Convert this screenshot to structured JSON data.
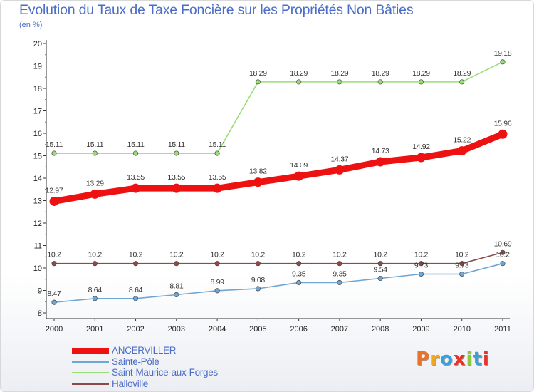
{
  "header": {
    "title": "Evolution du Taux de Taxe Foncière sur les Propriétés Non Bâties",
    "unit": "(en %)"
  },
  "logo": {
    "text": "Proxiti",
    "colors": [
      "#e8732a",
      "#f0a81c",
      "#3aa0da",
      "#e6332a",
      "#8dc63f",
      "#3aa0da",
      "#e6332a"
    ]
  },
  "chart_data": {
    "type": "line",
    "x": [
      "2000",
      "2001",
      "2002",
      "2003",
      "2004",
      "2005",
      "2006",
      "2007",
      "2008",
      "2009",
      "2010",
      "2011"
    ],
    "ylim": [
      8,
      20
    ],
    "yticks": [
      "8",
      "9",
      "10",
      "11",
      "12",
      "13",
      "14",
      "15",
      "16",
      "17",
      "18",
      "19",
      "20"
    ],
    "grid": false,
    "legend_position": "bottom-left",
    "series": [
      {
        "name": "ANCERVILLER",
        "color": "#ee1111",
        "values": [
          12.97,
          13.29,
          13.55,
          13.55,
          13.55,
          13.82,
          14.09,
          14.37,
          14.73,
          14.92,
          15.22,
          15.96
        ],
        "labels": [
          "12.97",
          "13.29",
          "13.55",
          "13.55",
          "13.55",
          "13.82",
          "14.09",
          "14.37",
          "14.73",
          "14.92",
          "15.22",
          "15.96"
        ]
      },
      {
        "name": "Sainte-Pôle",
        "color": "#6fa6d3",
        "values": [
          8.47,
          8.64,
          8.64,
          8.81,
          8.99,
          9.08,
          9.35,
          9.35,
          9.54,
          9.73,
          9.73,
          10.2
        ],
        "labels": [
          "8.47",
          "8.64",
          "8.64",
          "8.81",
          "8.99",
          "9.08",
          "9.35",
          "9.35",
          "9.54",
          "9.73",
          "9.73",
          "10.2"
        ]
      },
      {
        "name": "Saint-Maurice-aux-Forges",
        "color": "#99dd77",
        "values": [
          15.11,
          15.11,
          15.11,
          15.11,
          15.11,
          18.29,
          18.29,
          18.29,
          18.29,
          18.29,
          18.29,
          19.18
        ],
        "labels": [
          "15.11",
          "15.11",
          "15.11",
          "15.11",
          "15.11",
          "18.29",
          "18.29",
          "18.29",
          "18.29",
          "18.29",
          "18.29",
          "19.18"
        ]
      },
      {
        "name": "Halloville",
        "color": "#8e4a4a",
        "values": [
          10.2,
          10.2,
          10.2,
          10.2,
          10.2,
          10.2,
          10.2,
          10.2,
          10.2,
          10.2,
          10.2,
          10.69
        ],
        "labels": [
          "10.2",
          "10.2",
          "10.2",
          "10.2",
          "10.2",
          "10.2",
          "10.2",
          "10.2",
          "10.2",
          "10.2",
          "10.2",
          "10.69"
        ]
      }
    ]
  }
}
